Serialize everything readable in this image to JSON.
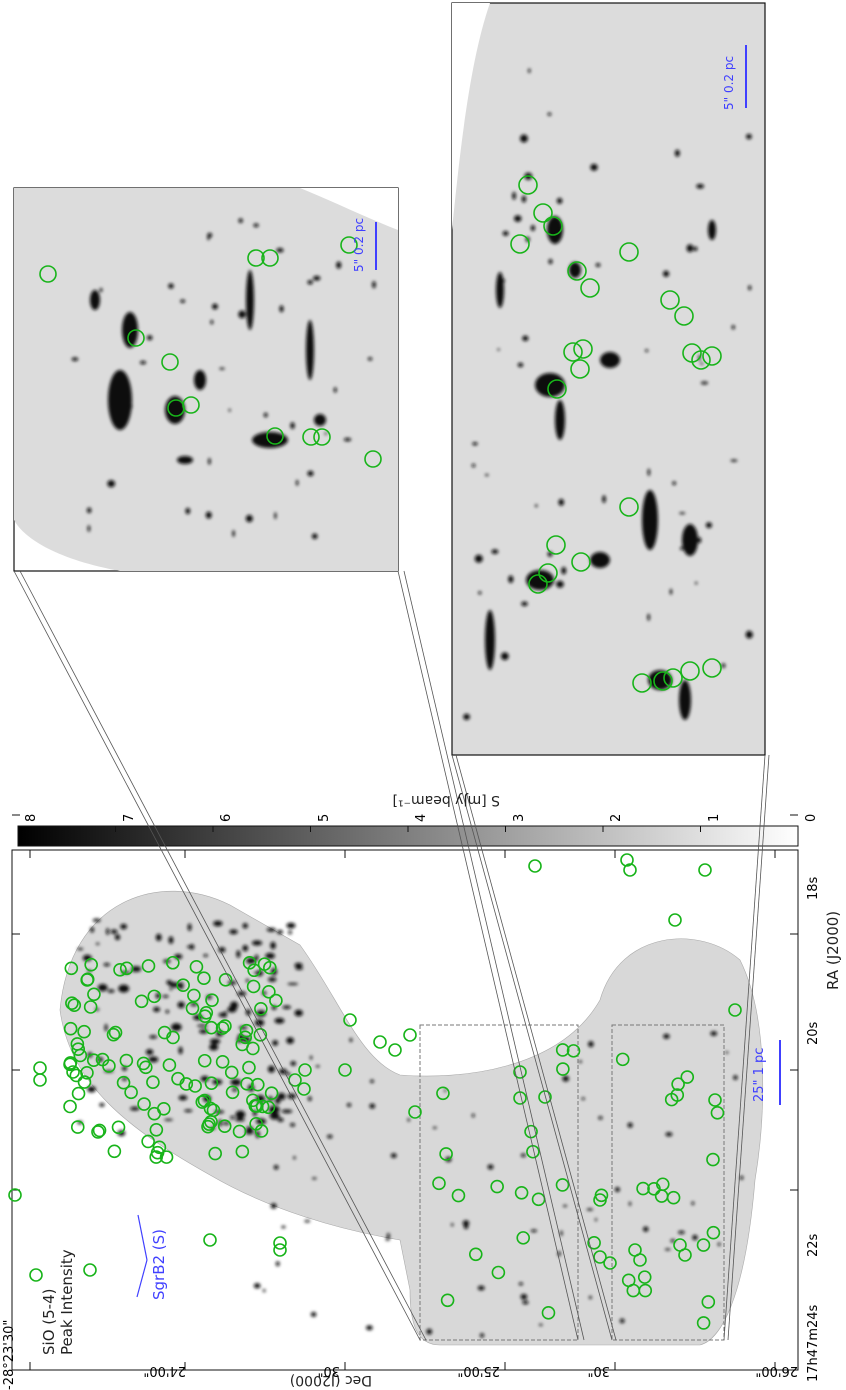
{
  "panel_main": {
    "title_line1": "SiO (5-4)",
    "title_line2": "Peak Intensity",
    "source_label": "SgrB2 (S)",
    "scale_bar": "25\" 1 pc",
    "xlabel": "RA (J2000)",
    "ylabel": "Dec (J2000)",
    "ra_ticks": [
      "17h47m24s",
      "22s",
      "20s",
      "18s"
    ],
    "dec_ticks": [
      "-28°23'30\"",
      "24'00\"",
      "30\"",
      "25'00\"",
      "30\"",
      "26'00\""
    ]
  },
  "colorbar": {
    "label": "S [mJy beam⁻¹]",
    "ticks": [
      "8",
      "7",
      "6",
      "5",
      "4",
      "3",
      "2",
      "1",
      "0"
    ],
    "range": [
      0,
      8
    ]
  },
  "inset_upper": {
    "scale_bar": "5\" 0.2 pc"
  },
  "inset_lower": {
    "scale_bar": "5\" 0.2 pc"
  },
  "colors": {
    "marker": "#18b41a",
    "annotation": "#4040ff",
    "frame": "#111111"
  }
}
